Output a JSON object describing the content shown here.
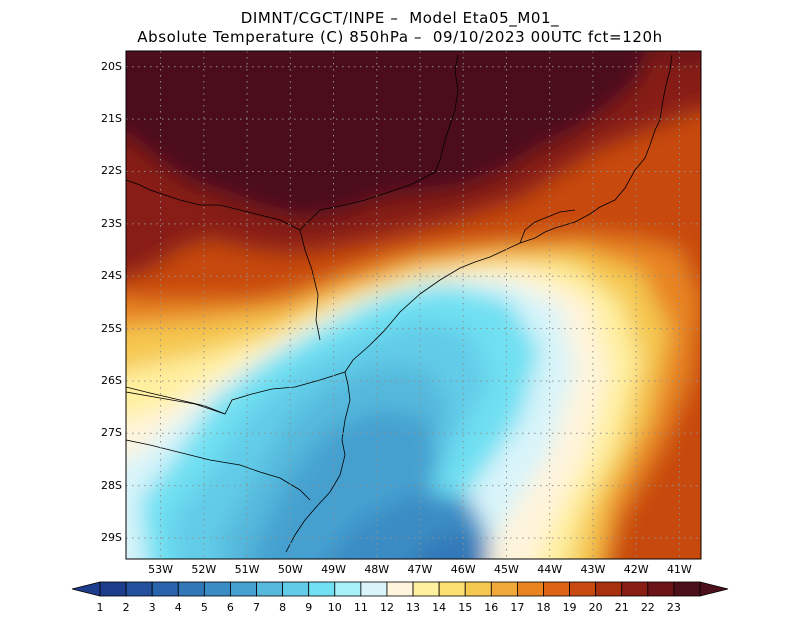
{
  "title": {
    "line1": "DIMNT/CGCT/INPE –  Model Eta05_M01_",
    "line2": "Absolute Temperature (C) 850hPa –  09/10/2023 00UTC fct=120h"
  },
  "map": {
    "lat_labels": [
      "20S",
      "21S",
      "22S",
      "23S",
      "24S",
      "25S",
      "26S",
      "27S",
      "28S",
      "29S"
    ],
    "lon_labels": [
      "53W",
      "52W",
      "51W",
      "50W",
      "49W",
      "48W",
      "47W",
      "46W",
      "45W",
      "44W",
      "43W",
      "42W",
      "41W"
    ],
    "lon_range": [
      -53.8,
      -40.5
    ],
    "lat_range": [
      -29.4,
      -19.7
    ],
    "gridlines": "dotted"
  },
  "colorbar": {
    "labels": [
      "1",
      "2",
      "3",
      "4",
      "5",
      "6",
      "7",
      "8",
      "9",
      "10",
      "11",
      "12",
      "13",
      "14",
      "15",
      "16",
      "17",
      "18",
      "19",
      "20",
      "21",
      "22",
      "23"
    ],
    "colors": [
      "#1e3c8c",
      "#23509c",
      "#2a64ac",
      "#3278b8",
      "#3a8cc4",
      "#45a0d0",
      "#55b8dc",
      "#62cce8",
      "#70e0f2",
      "#a8f0f8",
      "#d8f4fa",
      "#fff4dc",
      "#fff0a0",
      "#fae070",
      "#f5c850",
      "#f0a838",
      "#e88420",
      "#dc6414",
      "#c84a10",
      "#a83210",
      "#881e14",
      "#6c1418",
      "#4c101a"
    ]
  }
}
